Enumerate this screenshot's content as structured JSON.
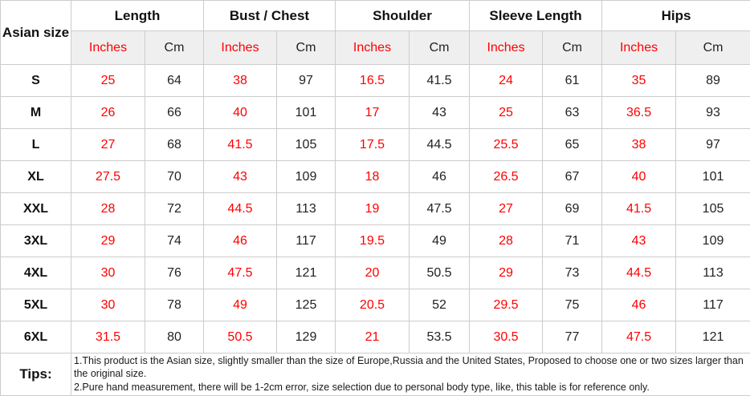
{
  "chart_data": {
    "type": "table",
    "corner_header": "Asian size",
    "column_groups": [
      "Length",
      "Bust / Chest",
      "Shoulder",
      "Sleeve Length",
      "Hips"
    ],
    "unit_columns": [
      "Inches",
      "Cm"
    ],
    "rows": [
      {
        "size": "S",
        "values": [
          "25",
          "64",
          "38",
          "97",
          "16.5",
          "41.5",
          "24",
          "61",
          "35",
          "89"
        ]
      },
      {
        "size": "M",
        "values": [
          "26",
          "66",
          "40",
          "101",
          "17",
          "43",
          "25",
          "63",
          "36.5",
          "93"
        ]
      },
      {
        "size": "L",
        "values": [
          "27",
          "68",
          "41.5",
          "105",
          "17.5",
          "44.5",
          "25.5",
          "65",
          "38",
          "97"
        ]
      },
      {
        "size": "XL",
        "values": [
          "27.5",
          "70",
          "43",
          "109",
          "18",
          "46",
          "26.5",
          "67",
          "40",
          "101"
        ]
      },
      {
        "size": "XXL",
        "values": [
          "28",
          "72",
          "44.5",
          "113",
          "19",
          "47.5",
          "27",
          "69",
          "41.5",
          "105"
        ]
      },
      {
        "size": "3XL",
        "values": [
          "29",
          "74",
          "46",
          "117",
          "19.5",
          "49",
          "28",
          "71",
          "43",
          "109"
        ]
      },
      {
        "size": "4XL",
        "values": [
          "30",
          "76",
          "47.5",
          "121",
          "20",
          "50.5",
          "29",
          "73",
          "44.5",
          "113"
        ]
      },
      {
        "size": "5XL",
        "values": [
          "30",
          "78",
          "49",
          "125",
          "20.5",
          "52",
          "29.5",
          "75",
          "46",
          "117"
        ]
      },
      {
        "size": "6XL",
        "values": [
          "31.5",
          "80",
          "50.5",
          "129",
          "21",
          "53.5",
          "30.5",
          "77",
          "47.5",
          "121"
        ]
      }
    ],
    "tips": {
      "label": "Tips:",
      "lines": [
        "1.This product is the Asian size, slightly smaller than the size of Europe,Russia and the United States, Proposed to choose one or two sizes larger than the original size.",
        "2.Pure hand measurement, there will be 1-2cm error, size selection due to personal body type, like, this table is for reference only."
      ]
    },
    "colors": {
      "inches_text": "#ff0000",
      "cm_text": "#222222",
      "subheader_bg": "#efefef",
      "border": "#cccccc"
    }
  }
}
